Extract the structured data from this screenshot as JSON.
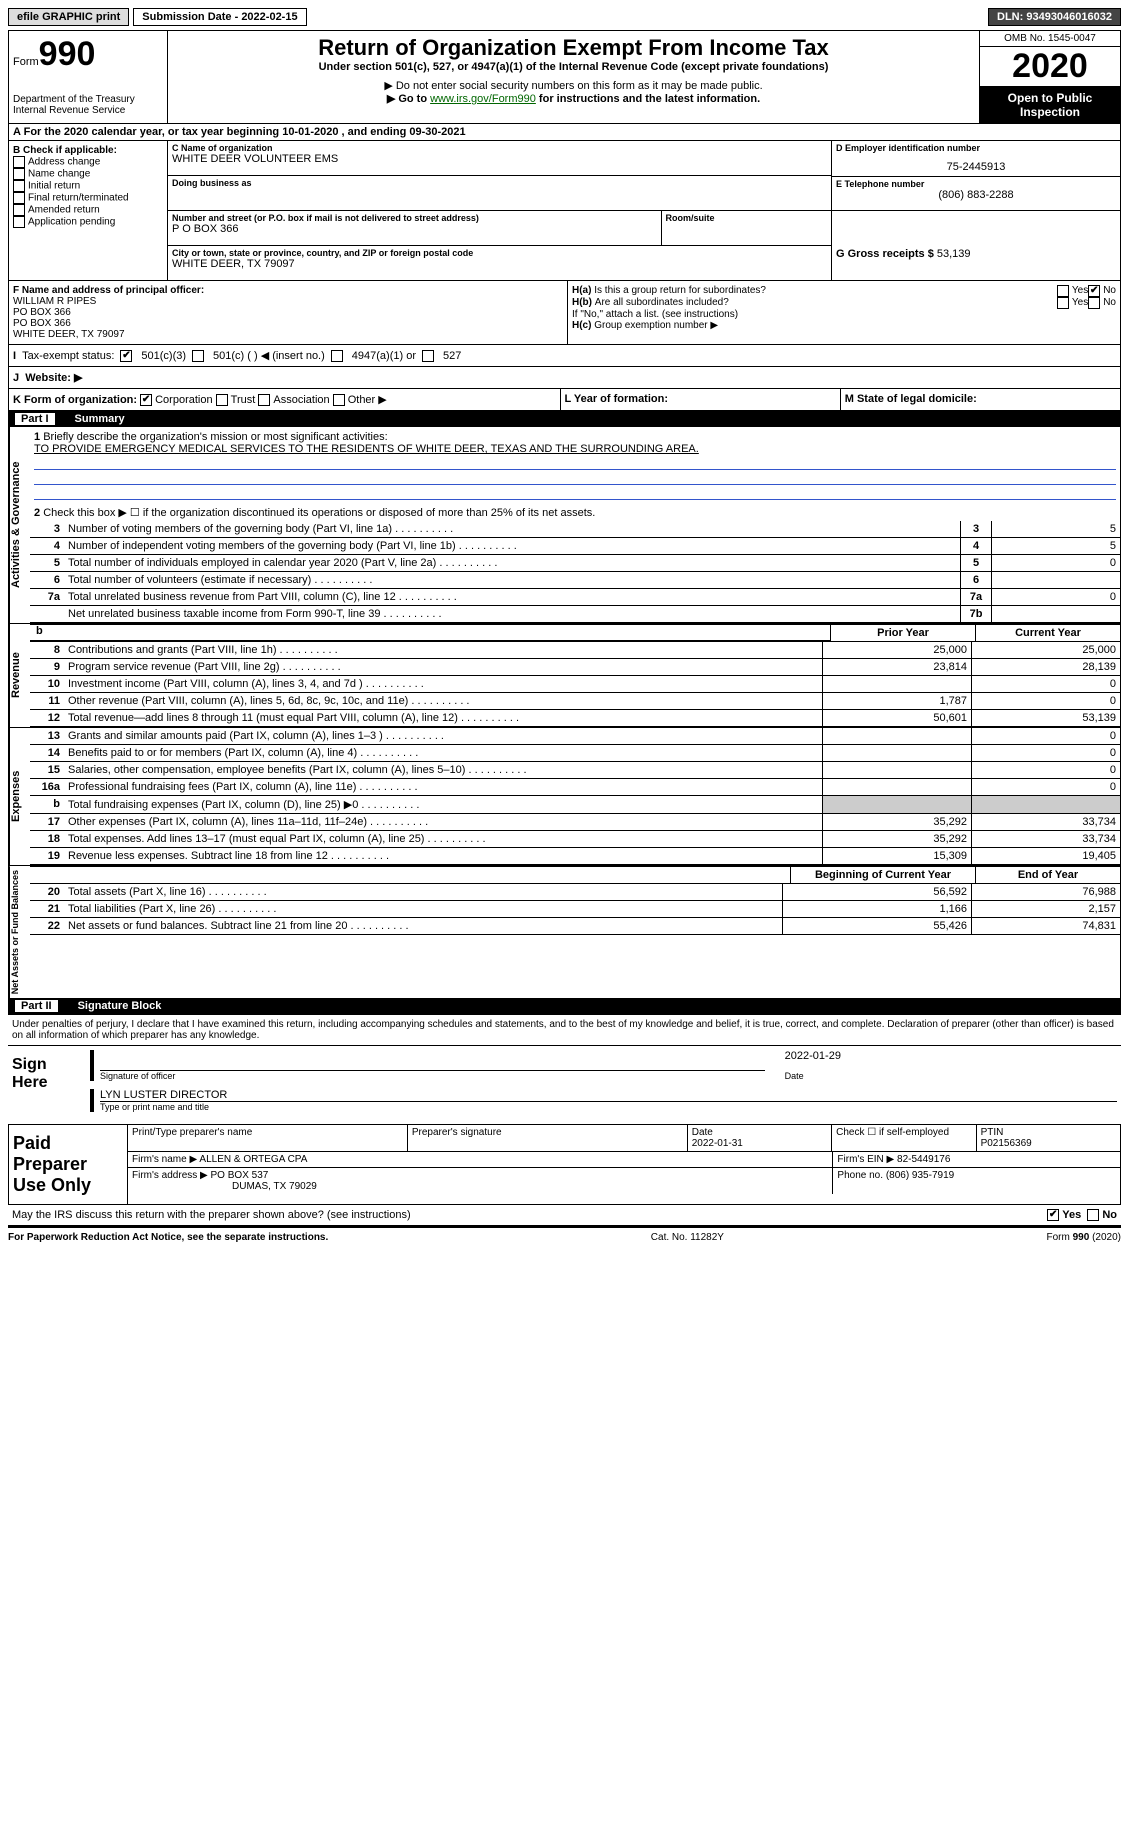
{
  "topbar": {
    "efile": "efile GRAPHIC print",
    "submission": "Submission Date - 2022-02-15",
    "dln": "DLN: 93493046016032"
  },
  "header": {
    "form_label": "Form",
    "form_number": "990",
    "dept": "Department of the Treasury\nInternal Revenue Service",
    "title": "Return of Organization Exempt From Income Tax",
    "subtitle": "Under section 501(c), 527, or 4947(a)(1) of the Internal Revenue Code (except private foundations)",
    "warn1": "▶ Do not enter social security numbers on this form as it may be made public.",
    "warn2_pre": "▶ Go to ",
    "warn2_link": "www.irs.gov/Form990",
    "warn2_post": " for instructions and the latest information.",
    "omb": "OMB No. 1545-0047",
    "year": "2020",
    "open": "Open to Public Inspection"
  },
  "period": "For the 2020 calendar year, or tax year beginning 10-01-2020    , and ending 09-30-2021",
  "boxB": {
    "title": "B Check if applicable:",
    "opts": [
      "Address change",
      "Name change",
      "Initial return",
      "Final return/terminated",
      "Amended return",
      "Application pending"
    ]
  },
  "boxC": {
    "label": "C Name of organization",
    "name": "WHITE DEER VOLUNTEER EMS",
    "dba_label": "Doing business as",
    "addr_label": "Number and street (or P.O. box if mail is not delivered to street address)",
    "room_label": "Room/suite",
    "addr": "P O BOX 366",
    "city_label": "City or town, state or province, country, and ZIP or foreign postal code",
    "city": "WHITE DEER, TX  79097"
  },
  "boxD": {
    "label": "D Employer identification number",
    "ein": "75-2445913"
  },
  "boxE": {
    "label": "E Telephone number",
    "phone": "(806) 883-2288"
  },
  "boxG": {
    "label": "G Gross receipts $",
    "val": "53,139"
  },
  "boxF": {
    "label": "F  Name and address of principal officer:",
    "lines": [
      "WILLIAM R PIPES",
      "PO BOX 366",
      "PO BOX 366",
      "WHITE DEER, TX  79097"
    ]
  },
  "boxH": {
    "a": "Is this a group return for subordinates?",
    "a_yes": "Yes",
    "a_no": "No",
    "b": "Are all subordinates included?",
    "b_yes": "Yes",
    "b_no": "No",
    "b_note": "If \"No,\" attach a list. (see instructions)",
    "c": "Group exemption number ▶"
  },
  "taxStatus": {
    "i": "I",
    "label": "Tax-exempt status:",
    "o1": "501(c)(3)",
    "o2": "501(c) (  ) ◀ (insert no.)",
    "o3": "4947(a)(1) or",
    "o4": "527"
  },
  "websiteRow": {
    "j": "J",
    "label": "Website: ▶"
  },
  "klm": {
    "k": "K Form of organization:",
    "k_opts": [
      "Corporation",
      "Trust",
      "Association",
      "Other ▶"
    ],
    "l": "L Year of formation:",
    "m": "M State of legal domicile:"
  },
  "partI": {
    "label": "Part I",
    "title": "Summary"
  },
  "mission": {
    "num": "1",
    "label": "Briefly describe the organization's mission or most significant activities:",
    "text": "TO PROVIDE EMERGENCY MEDICAL SERVICES TO THE RESIDENTS OF WHITE DEER, TEXAS AND THE SURROUNDING AREA."
  },
  "line2": "Check this box ▶ ☐  if the organization discontinued its operations or disposed of more than 25% of its net assets.",
  "govLines": [
    {
      "n": "3",
      "t": "Number of voting members of the governing body (Part VI, line 1a)",
      "bn": "3",
      "v": "5"
    },
    {
      "n": "4",
      "t": "Number of independent voting members of the governing body (Part VI, line 1b)",
      "bn": "4",
      "v": "5"
    },
    {
      "n": "5",
      "t": "Total number of individuals employed in calendar year 2020 (Part V, line 2a)",
      "bn": "5",
      "v": "0"
    },
    {
      "n": "6",
      "t": "Total number of volunteers (estimate if necessary)",
      "bn": "6",
      "v": ""
    },
    {
      "n": "7a",
      "t": "Total unrelated business revenue from Part VIII, column (C), line 12",
      "bn": "7a",
      "v": "0"
    },
    {
      "n": "",
      "t": "Net unrelated business taxable income from Form 990-T, line 39",
      "bn": "7b",
      "v": ""
    }
  ],
  "headers2": {
    "prior": "Prior Year",
    "curr": "Current Year"
  },
  "revenue": [
    {
      "n": "8",
      "t": "Contributions and grants (Part VIII, line 1h)",
      "p": "25,000",
      "c": "25,000"
    },
    {
      "n": "9",
      "t": "Program service revenue (Part VIII, line 2g)",
      "p": "23,814",
      "c": "28,139"
    },
    {
      "n": "10",
      "t": "Investment income (Part VIII, column (A), lines 3, 4, and 7d )",
      "p": "",
      "c": "0"
    },
    {
      "n": "11",
      "t": "Other revenue (Part VIII, column (A), lines 5, 6d, 8c, 9c, 10c, and 11e)",
      "p": "1,787",
      "c": "0"
    },
    {
      "n": "12",
      "t": "Total revenue—add lines 8 through 11 (must equal Part VIII, column (A), line 12)",
      "p": "50,601",
      "c": "53,139"
    }
  ],
  "expenses": [
    {
      "n": "13",
      "t": "Grants and similar amounts paid (Part IX, column (A), lines 1–3 )",
      "p": "",
      "c": "0"
    },
    {
      "n": "14",
      "t": "Benefits paid to or for members (Part IX, column (A), line 4)",
      "p": "",
      "c": "0"
    },
    {
      "n": "15",
      "t": "Salaries, other compensation, employee benefits (Part IX, column (A), lines 5–10)",
      "p": "",
      "c": "0"
    },
    {
      "n": "16a",
      "t": "Professional fundraising fees (Part IX, column (A), line 11e)",
      "p": "",
      "c": "0"
    },
    {
      "n": "b",
      "t": "Total fundraising expenses (Part IX, column (D), line 25) ▶0",
      "p": "shade",
      "c": "shade"
    },
    {
      "n": "17",
      "t": "Other expenses (Part IX, column (A), lines 11a–11d, 11f–24e)",
      "p": "35,292",
      "c": "33,734"
    },
    {
      "n": "18",
      "t": "Total expenses. Add lines 13–17 (must equal Part IX, column (A), line 25)",
      "p": "35,292",
      "c": "33,734"
    },
    {
      "n": "19",
      "t": "Revenue less expenses. Subtract line 18 from line 12",
      "p": "15,309",
      "c": "19,405"
    }
  ],
  "headers3": {
    "begin": "Beginning of Current Year",
    "end": "End of Year"
  },
  "netassets": [
    {
      "n": "20",
      "t": "Total assets (Part X, line 16)",
      "p": "56,592",
      "c": "76,988"
    },
    {
      "n": "21",
      "t": "Total liabilities (Part X, line 26)",
      "p": "1,166",
      "c": "2,157"
    },
    {
      "n": "22",
      "t": "Net assets or fund balances. Subtract line 21 from line 20",
      "p": "55,426",
      "c": "74,831"
    }
  ],
  "sideLabels": {
    "gov": "Activities & Governance",
    "rev": "Revenue",
    "exp": "Expenses",
    "net": "Net Assets or Fund Balances"
  },
  "partII": {
    "label": "Part II",
    "title": "Signature Block"
  },
  "perjury": "Under penalties of perjury, I declare that I have examined this return, including accompanying schedules and statements, and to the best of my knowledge and belief, it is true, correct, and complete. Declaration of preparer (other than officer) is based on all information of which preparer has any knowledge.",
  "sign": {
    "here": "Sign Here",
    "sig_label": "Signature of officer",
    "date": "2022-01-29",
    "date_label": "Date",
    "name": "LYN LUSTER  DIRECTOR",
    "name_label": "Type or print name and title"
  },
  "preparer": {
    "title": "Paid Preparer Use Only",
    "h1": "Print/Type preparer's name",
    "h2": "Preparer's signature",
    "h3": "Date",
    "h3v": "2022-01-31",
    "h4": "Check ☐ if self-employed",
    "h5": "PTIN",
    "h5v": "P02156369",
    "firm_label": "Firm's name    ▶",
    "firm": "ALLEN & ORTEGA CPA",
    "ein_label": "Firm's EIN ▶",
    "ein": "82-5449176",
    "addr_label": "Firm's address ▶",
    "addr1": "PO BOX 537",
    "addr2": "DUMAS, TX  79029",
    "phone_label": "Phone no.",
    "phone": "(806) 935-7919"
  },
  "discuss": {
    "q": "May the IRS discuss this return with the preparer shown above? (see instructions)",
    "yes": "Yes",
    "no": "No"
  },
  "footer": {
    "left": "For Paperwork Reduction Act Notice, see the separate instructions.",
    "mid": "Cat. No. 11282Y",
    "right": "Form 990 (2020)"
  }
}
